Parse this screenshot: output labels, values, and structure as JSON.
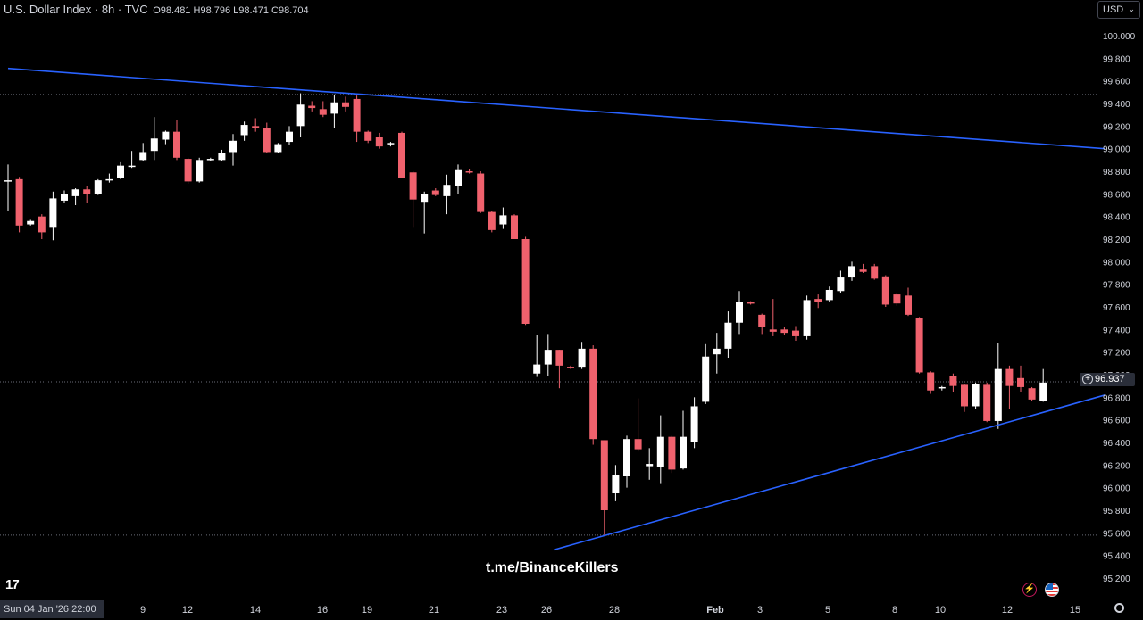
{
  "header": {
    "symbol_label": "U.S. Dollar Index · 8h · TVC",
    "open_label": "O",
    "open": "98.481",
    "high_label": "H",
    "high": "98.796",
    "low_label": "L",
    "low": "98.471",
    "close_label": "C",
    "close": "98.704"
  },
  "currency_select": {
    "value": "USD"
  },
  "cursor_date": "Sun 04 Jan '26   22:00",
  "last_price": "96.937",
  "watermark": "t.me/BinanceKillers",
  "icons": {
    "settings": "gear-icon",
    "logo": "tradingview-logo-icon",
    "alert": "lightning-icon",
    "flag": "us-flag-icon"
  },
  "colors": {
    "up": "#ffffff",
    "down": "#f0616d",
    "trendline": "#2962ff",
    "background": "#000000",
    "axis_text": "#d1d4dc"
  },
  "chart_data": {
    "type": "candlestick",
    "title": "U.S. Dollar Index · 8h · TVC",
    "ylim": [
      95.2,
      100.0
    ],
    "y_ticks": [
      "100.000",
      "99.800",
      "99.600",
      "99.400",
      "99.200",
      "99.000",
      "98.800",
      "98.600",
      "98.400",
      "98.200",
      "98.000",
      "97.800",
      "97.600",
      "97.400",
      "97.200",
      "97.000",
      "96.800",
      "96.600",
      "96.400",
      "96.200",
      "96.000",
      "95.800",
      "95.600",
      "95.400",
      "95.200"
    ],
    "x_ticks": [
      "9",
      "12",
      "14",
      "16",
      "19",
      "21",
      "23",
      "26",
      "28",
      "Feb",
      "3",
      "5",
      "8",
      "10",
      "12",
      "15"
    ],
    "reference_lines": [
      99.48,
      96.937,
      95.58
    ],
    "trendlines": [
      {
        "name": "",
        "from": [
          0,
          99.71
        ],
        "to": [
          97.5,
          99.0
        ]
      },
      {
        "name": "",
        "from": [
          48.5,
          95.45
        ],
        "to": [
          97.5,
          96.82
        ]
      }
    ],
    "candles": [
      {
        "i": 0,
        "o": 98.71,
        "h": 98.86,
        "l": 98.45,
        "c": 98.72
      },
      {
        "i": 1,
        "o": 98.73,
        "h": 98.75,
        "l": 98.26,
        "c": 98.32
      },
      {
        "i": 2,
        "o": 98.33,
        "h": 98.37,
        "l": 98.32,
        "c": 98.36
      },
      {
        "i": 3,
        "o": 98.4,
        "h": 98.42,
        "l": 98.2,
        "c": 98.26
      },
      {
        "i": 4,
        "o": 98.3,
        "h": 98.62,
        "l": 98.19,
        "c": 98.56
      },
      {
        "i": 5,
        "o": 98.54,
        "h": 98.63,
        "l": 98.52,
        "c": 98.6
      },
      {
        "i": 6,
        "o": 98.58,
        "h": 98.65,
        "l": 98.5,
        "c": 98.64
      },
      {
        "i": 7,
        "o": 98.64,
        "h": 98.67,
        "l": 98.52,
        "c": 98.6
      },
      {
        "i": 8,
        "o": 98.6,
        "h": 98.73,
        "l": 98.59,
        "c": 98.72
      },
      {
        "i": 9,
        "o": 98.72,
        "h": 98.78,
        "l": 98.7,
        "c": 98.73
      },
      {
        "i": 10,
        "o": 98.74,
        "h": 98.88,
        "l": 98.73,
        "c": 98.85
      },
      {
        "i": 11,
        "o": 98.84,
        "h": 98.98,
        "l": 98.83,
        "c": 98.85
      },
      {
        "i": 12,
        "o": 98.9,
        "h": 99.05,
        "l": 98.89,
        "c": 98.97
      },
      {
        "i": 13,
        "o": 98.98,
        "h": 99.28,
        "l": 98.9,
        "c": 99.09
      },
      {
        "i": 14,
        "o": 99.08,
        "h": 99.16,
        "l": 99.04,
        "c": 99.15
      },
      {
        "i": 15,
        "o": 99.15,
        "h": 99.25,
        "l": 98.9,
        "c": 98.92
      },
      {
        "i": 16,
        "o": 98.91,
        "h": 98.92,
        "l": 98.69,
        "c": 98.71
      },
      {
        "i": 17,
        "o": 98.71,
        "h": 98.92,
        "l": 98.7,
        "c": 98.9
      },
      {
        "i": 18,
        "o": 98.9,
        "h": 98.92,
        "l": 98.89,
        "c": 98.91
      },
      {
        "i": 19,
        "o": 98.9,
        "h": 98.99,
        "l": 98.89,
        "c": 98.96
      },
      {
        "i": 20,
        "o": 98.97,
        "h": 99.13,
        "l": 98.85,
        "c": 99.07
      },
      {
        "i": 21,
        "o": 99.12,
        "h": 99.24,
        "l": 99.07,
        "c": 99.21
      },
      {
        "i": 22,
        "o": 99.2,
        "h": 99.27,
        "l": 99.15,
        "c": 99.18
      },
      {
        "i": 23,
        "o": 99.18,
        "h": 99.23,
        "l": 98.96,
        "c": 98.97
      },
      {
        "i": 24,
        "o": 98.97,
        "h": 99.05,
        "l": 98.96,
        "c": 99.04
      },
      {
        "i": 25,
        "o": 99.06,
        "h": 99.2,
        "l": 99.03,
        "c": 99.15
      },
      {
        "i": 26,
        "o": 99.2,
        "h": 99.49,
        "l": 99.1,
        "c": 99.39
      },
      {
        "i": 27,
        "o": 99.38,
        "h": 99.42,
        "l": 99.33,
        "c": 99.36
      },
      {
        "i": 28,
        "o": 99.35,
        "h": 99.42,
        "l": 99.28,
        "c": 99.3
      },
      {
        "i": 29,
        "o": 99.31,
        "h": 99.48,
        "l": 99.18,
        "c": 99.41
      },
      {
        "i": 30,
        "o": 99.41,
        "h": 99.46,
        "l": 99.33,
        "c": 99.37
      },
      {
        "i": 31,
        "o": 99.44,
        "h": 99.47,
        "l": 99.06,
        "c": 99.15
      },
      {
        "i": 32,
        "o": 99.15,
        "h": 99.16,
        "l": 99.05,
        "c": 99.07
      },
      {
        "i": 33,
        "o": 99.1,
        "h": 99.14,
        "l": 99.0,
        "c": 99.02
      },
      {
        "i": 34,
        "o": 99.04,
        "h": 99.06,
        "l": 99.02,
        "c": 99.05
      },
      {
        "i": 35,
        "o": 99.14,
        "h": 99.15,
        "l": 98.74,
        "c": 98.74
      },
      {
        "i": 36,
        "o": 98.79,
        "h": 98.8,
        "l": 98.3,
        "c": 98.55
      },
      {
        "i": 37,
        "o": 98.53,
        "h": 98.62,
        "l": 98.25,
        "c": 98.6
      },
      {
        "i": 38,
        "o": 98.63,
        "h": 98.65,
        "l": 98.58,
        "c": 98.59
      },
      {
        "i": 39,
        "o": 98.58,
        "h": 98.77,
        "l": 98.42,
        "c": 98.68
      },
      {
        "i": 40,
        "o": 98.67,
        "h": 98.86,
        "l": 98.6,
        "c": 98.81
      },
      {
        "i": 41,
        "o": 98.8,
        "h": 98.82,
        "l": 98.78,
        "c": 98.79
      },
      {
        "i": 42,
        "o": 98.78,
        "h": 98.8,
        "l": 98.43,
        "c": 98.44
      },
      {
        "i": 43,
        "o": 98.44,
        "h": 98.45,
        "l": 98.26,
        "c": 98.28
      },
      {
        "i": 44,
        "o": 98.33,
        "h": 98.48,
        "l": 98.29,
        "c": 98.41
      },
      {
        "i": 45,
        "o": 98.41,
        "h": 98.42,
        "l": 98.2,
        "c": 98.2
      },
      {
        "i": 46,
        "o": 98.2,
        "h": 98.22,
        "l": 97.44,
        "c": 97.45
      },
      {
        "i": 47,
        "o": 97.01,
        "h": 97.35,
        "l": 96.98,
        "c": 97.09
      },
      {
        "i": 48,
        "o": 97.09,
        "h": 97.36,
        "l": 96.99,
        "c": 97.22
      },
      {
        "i": 49,
        "o": 97.22,
        "h": 97.22,
        "l": 96.88,
        "c": 97.08
      },
      {
        "i": 50,
        "o": 97.07,
        "h": 97.08,
        "l": 97.05,
        "c": 97.06
      },
      {
        "i": 51,
        "o": 97.07,
        "h": 97.29,
        "l": 97.05,
        "c": 97.23
      },
      {
        "i": 52,
        "o": 97.23,
        "h": 97.26,
        "l": 96.38,
        "c": 96.43
      },
      {
        "i": 53,
        "o": 96.42,
        "h": 96.42,
        "l": 95.58,
        "c": 95.8
      },
      {
        "i": 54,
        "o": 95.95,
        "h": 96.2,
        "l": 95.88,
        "c": 96.11
      },
      {
        "i": 55,
        "o": 96.1,
        "h": 96.46,
        "l": 96.0,
        "c": 96.43
      },
      {
        "i": 56,
        "o": 96.43,
        "h": 96.79,
        "l": 96.32,
        "c": 96.34
      },
      {
        "i": 57,
        "o": 96.19,
        "h": 96.35,
        "l": 96.07,
        "c": 96.21
      },
      {
        "i": 58,
        "o": 96.18,
        "h": 96.64,
        "l": 96.04,
        "c": 96.45
      },
      {
        "i": 59,
        "o": 96.45,
        "h": 96.46,
        "l": 96.13,
        "c": 96.16
      },
      {
        "i": 60,
        "o": 96.17,
        "h": 96.68,
        "l": 96.16,
        "c": 96.45
      },
      {
        "i": 61,
        "o": 96.4,
        "h": 96.8,
        "l": 96.35,
        "c": 96.72
      },
      {
        "i": 62,
        "o": 96.76,
        "h": 97.27,
        "l": 96.74,
        "c": 97.16
      },
      {
        "i": 63,
        "o": 97.18,
        "h": 97.37,
        "l": 97.01,
        "c": 97.23
      },
      {
        "i": 64,
        "o": 97.23,
        "h": 97.56,
        "l": 97.15,
        "c": 97.46
      },
      {
        "i": 65,
        "o": 97.46,
        "h": 97.74,
        "l": 97.36,
        "c": 97.64
      },
      {
        "i": 66,
        "o": 97.64,
        "h": 97.65,
        "l": 97.62,
        "c": 97.63
      },
      {
        "i": 67,
        "o": 97.53,
        "h": 97.54,
        "l": 97.36,
        "c": 97.42
      },
      {
        "i": 68,
        "o": 97.4,
        "h": 97.67,
        "l": 97.34,
        "c": 97.38
      },
      {
        "i": 69,
        "o": 97.4,
        "h": 97.42,
        "l": 97.35,
        "c": 97.37
      },
      {
        "i": 70,
        "o": 97.39,
        "h": 97.43,
        "l": 97.3,
        "c": 97.34
      },
      {
        "i": 71,
        "o": 97.34,
        "h": 97.7,
        "l": 97.31,
        "c": 97.66
      },
      {
        "i": 72,
        "o": 97.67,
        "h": 97.71,
        "l": 97.59,
        "c": 97.64
      },
      {
        "i": 73,
        "o": 97.66,
        "h": 97.78,
        "l": 97.64,
        "c": 97.75
      },
      {
        "i": 74,
        "o": 97.74,
        "h": 97.92,
        "l": 97.72,
        "c": 97.86
      },
      {
        "i": 75,
        "o": 97.86,
        "h": 98.0,
        "l": 97.83,
        "c": 97.96
      },
      {
        "i": 76,
        "o": 97.93,
        "h": 97.98,
        "l": 97.9,
        "c": 97.91
      },
      {
        "i": 77,
        "o": 97.96,
        "h": 97.98,
        "l": 97.84,
        "c": 97.85
      },
      {
        "i": 78,
        "o": 97.87,
        "h": 97.88,
        "l": 97.6,
        "c": 97.62
      },
      {
        "i": 79,
        "o": 97.71,
        "h": 97.72,
        "l": 97.61,
        "c": 97.63
      },
      {
        "i": 80,
        "o": 97.7,
        "h": 97.77,
        "l": 97.52,
        "c": 97.53
      },
      {
        "i": 81,
        "o": 97.5,
        "h": 97.51,
        "l": 97.01,
        "c": 97.02
      },
      {
        "i": 82,
        "o": 97.02,
        "h": 97.03,
        "l": 96.83,
        "c": 96.86
      },
      {
        "i": 83,
        "o": 96.88,
        "h": 96.9,
        "l": 96.86,
        "c": 96.89
      },
      {
        "i": 84,
        "o": 96.99,
        "h": 97.01,
        "l": 96.85,
        "c": 96.9
      },
      {
        "i": 85,
        "o": 96.91,
        "h": 96.92,
        "l": 96.67,
        "c": 96.72
      },
      {
        "i": 86,
        "o": 96.72,
        "h": 96.93,
        "l": 96.7,
        "c": 96.92
      },
      {
        "i": 87,
        "o": 96.91,
        "h": 96.93,
        "l": 96.58,
        "c": 96.59
      },
      {
        "i": 88,
        "o": 96.59,
        "h": 97.28,
        "l": 96.52,
        "c": 97.05
      },
      {
        "i": 89,
        "o": 97.05,
        "h": 97.08,
        "l": 96.7,
        "c": 96.9
      },
      {
        "i": 90,
        "o": 96.97,
        "h": 97.08,
        "l": 96.85,
        "c": 96.89
      },
      {
        "i": 91,
        "o": 96.88,
        "h": 96.89,
        "l": 96.77,
        "c": 96.78
      },
      {
        "i": 92,
        "o": 96.77,
        "h": 97.05,
        "l": 96.76,
        "c": 96.93
      }
    ]
  }
}
